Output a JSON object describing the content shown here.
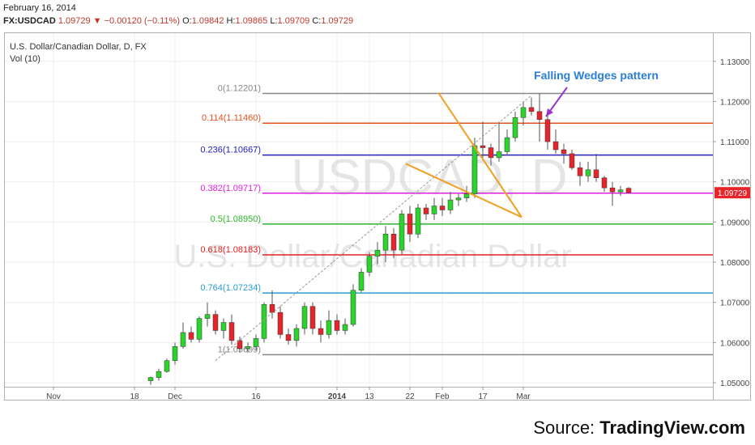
{
  "header": {
    "date": "February 16, 2014",
    "symbol": "FX:USDCAD",
    "last": "1.09729",
    "change": "−0.00120 (−0.11%)",
    "open_label": "O:",
    "open": "1.09842",
    "high_label": "H:",
    "high": "1.09865",
    "low_label": "L:",
    "low": "1.09709",
    "close_label": "C:",
    "close": "1.09729"
  },
  "chart_data": {
    "type": "candlestick",
    "title": "U.S. Dollar/Canadian Dollar, D, FX",
    "subtitle": "Vol (10)",
    "watermark_symbol": "USDCAD, D",
    "watermark_name": "U.S. Dollar/Canadian Dollar",
    "annotation": "Falling Wedges pattern",
    "last_price_label": "1.09729",
    "ylim": [
      1.049,
      1.137
    ],
    "y_ticks": [
      "1.13000",
      "1.12000",
      "1.11000",
      "1.10000",
      "1.09000",
      "1.08000",
      "1.07000",
      "1.06000",
      "1.05000"
    ],
    "x_ticks": [
      {
        "label": "Nov",
        "index": -12
      },
      {
        "label": "18",
        "index": -2
      },
      {
        "label": "Dec",
        "index": 3
      },
      {
        "label": "16",
        "index": 13
      },
      {
        "label": "2014",
        "index": 23
      },
      {
        "label": "13",
        "index": 27
      },
      {
        "label": "22",
        "index": 32
      },
      {
        "label": "Feb",
        "index": 36
      },
      {
        "label": "17",
        "index": 41
      },
      {
        "label": "Mar",
        "index": 46
      }
    ],
    "fib_levels": [
      {
        "label": "0(1.12201)",
        "value": 1.12201,
        "color": "#888888"
      },
      {
        "label": "0.114(1.11460)",
        "value": 1.1146,
        "color": "#e8501e"
      },
      {
        "label": "0.236(1.10667)",
        "value": 1.10667,
        "color": "#2020c0"
      },
      {
        "label": "0.382(1.09717)",
        "value": 1.09717,
        "color": "#e020e0"
      },
      {
        "label": "0.5(1.08950)",
        "value": 1.0895,
        "color": "#2cb52c"
      },
      {
        "label": "0.618(1.08183)",
        "value": 1.08183,
        "color": "#e02020"
      },
      {
        "label": "0.764(1.07234)",
        "value": 1.07234,
        "color": "#2a9fd0"
      },
      {
        "label": "1(1.05699)",
        "value": 1.05699,
        "color": "#888888"
      }
    ],
    "trendline": {
      "from": {
        "index": 8,
        "value": 1.0555
      },
      "to": {
        "index": 47,
        "value": 1.1215
      }
    },
    "wedge_upper": {
      "from": {
        "index": 35.5,
        "value": 1.1222
      },
      "to": {
        "index": 45.8,
        "value": 1.0912
      }
    },
    "wedge_lower": {
      "from": {
        "index": 31.5,
        "value": 1.1045
      },
      "to": {
        "index": 45.8,
        "value": 1.0912
      }
    },
    "candles": [
      {
        "o": 1.0505,
        "h": 1.0515,
        "l": 1.0495,
        "c": 1.0513
      },
      {
        "o": 1.0513,
        "h": 1.0535,
        "l": 1.0505,
        "c": 1.0528
      },
      {
        "o": 1.0528,
        "h": 1.056,
        "l": 1.0525,
        "c": 1.0555
      },
      {
        "o": 1.0555,
        "h": 1.06,
        "l": 1.0545,
        "c": 1.059
      },
      {
        "o": 1.059,
        "h": 1.065,
        "l": 1.0585,
        "c": 1.0625
      },
      {
        "o": 1.0625,
        "h": 1.064,
        "l": 1.06,
        "c": 1.0608
      },
      {
        "o": 1.0608,
        "h": 1.0665,
        "l": 1.06,
        "c": 1.066
      },
      {
        "o": 1.066,
        "h": 1.07,
        "l": 1.064,
        "c": 1.067
      },
      {
        "o": 1.067,
        "h": 1.068,
        "l": 1.062,
        "c": 1.063
      },
      {
        "o": 1.063,
        "h": 1.066,
        "l": 1.061,
        "c": 1.065
      },
      {
        "o": 1.065,
        "h": 1.067,
        "l": 1.0595,
        "c": 1.0605
      },
      {
        "o": 1.0605,
        "h": 1.0615,
        "l": 1.0575,
        "c": 1.0585
      },
      {
        "o": 1.0585,
        "h": 1.06,
        "l": 1.0575,
        "c": 1.059
      },
      {
        "o": 1.059,
        "h": 1.062,
        "l": 1.058,
        "c": 1.061
      },
      {
        "o": 1.061,
        "h": 1.07,
        "l": 1.06,
        "c": 1.0695
      },
      {
        "o": 1.0695,
        "h": 1.073,
        "l": 1.066,
        "c": 1.0675
      },
      {
        "o": 1.0675,
        "h": 1.069,
        "l": 1.061,
        "c": 1.062
      },
      {
        "o": 1.062,
        "h": 1.0635,
        "l": 1.0595,
        "c": 1.0605
      },
      {
        "o": 1.0605,
        "h": 1.0645,
        "l": 1.059,
        "c": 1.0635
      },
      {
        "o": 1.0635,
        "h": 1.07,
        "l": 1.062,
        "c": 1.069
      },
      {
        "o": 1.069,
        "h": 1.07,
        "l": 1.062,
        "c": 1.0635
      },
      {
        "o": 1.0635,
        "h": 1.0655,
        "l": 1.06,
        "c": 1.062
      },
      {
        "o": 1.062,
        "h": 1.068,
        "l": 1.061,
        "c": 1.0655
      },
      {
        "o": 1.0655,
        "h": 1.067,
        "l": 1.062,
        "c": 1.063
      },
      {
        "o": 1.063,
        "h": 1.066,
        "l": 1.062,
        "c": 1.0645
      },
      {
        "o": 1.0645,
        "h": 1.0745,
        "l": 1.064,
        "c": 1.073
      },
      {
        "o": 1.073,
        "h": 1.0785,
        "l": 1.0725,
        "c": 1.0775
      },
      {
        "o": 1.0775,
        "h": 1.0825,
        "l": 1.0765,
        "c": 1.0815
      },
      {
        "o": 1.0815,
        "h": 1.085,
        "l": 1.0795,
        "c": 1.083
      },
      {
        "o": 1.083,
        "h": 1.089,
        "l": 1.08,
        "c": 1.087
      },
      {
        "o": 1.087,
        "h": 1.0885,
        "l": 1.081,
        "c": 1.083
      },
      {
        "o": 1.083,
        "h": 1.093,
        "l": 1.082,
        "c": 1.092
      },
      {
        "o": 1.092,
        "h": 1.094,
        "l": 1.085,
        "c": 1.087
      },
      {
        "o": 1.087,
        "h": 1.0945,
        "l": 1.086,
        "c": 1.0935
      },
      {
        "o": 1.0935,
        "h": 1.0945,
        "l": 1.0905,
        "c": 1.092
      },
      {
        "o": 1.092,
        "h": 1.096,
        "l": 1.0905,
        "c": 1.094
      },
      {
        "o": 1.094,
        "h": 1.096,
        "l": 1.0915,
        "c": 1.093
      },
      {
        "o": 1.093,
        "h": 1.0975,
        "l": 1.092,
        "c": 1.0955
      },
      {
        "o": 1.0955,
        "h": 1.097,
        "l": 1.094,
        "c": 1.096
      },
      {
        "o": 1.096,
        "h": 1.099,
        "l": 1.095,
        "c": 1.097
      },
      {
        "o": 1.097,
        "h": 1.111,
        "l": 1.096,
        "c": 1.109
      },
      {
        "o": 1.109,
        "h": 1.115,
        "l": 1.106,
        "c": 1.1085
      },
      {
        "o": 1.1085,
        "h": 1.1095,
        "l": 1.104,
        "c": 1.106
      },
      {
        "o": 1.106,
        "h": 1.115,
        "l": 1.105,
        "c": 1.1075
      },
      {
        "o": 1.1075,
        "h": 1.113,
        "l": 1.1065,
        "c": 1.111
      },
      {
        "o": 1.111,
        "h": 1.1175,
        "l": 1.11,
        "c": 1.116
      },
      {
        "o": 1.116,
        "h": 1.12,
        "l": 1.114,
        "c": 1.1185
      },
      {
        "o": 1.1185,
        "h": 1.121,
        "l": 1.1165,
        "c": 1.1175
      },
      {
        "o": 1.1175,
        "h": 1.122,
        "l": 1.11,
        "c": 1.1155
      },
      {
        "o": 1.1155,
        "h": 1.1175,
        "l": 1.108,
        "c": 1.11
      },
      {
        "o": 1.11,
        "h": 1.113,
        "l": 1.107,
        "c": 1.108
      },
      {
        "o": 1.108,
        "h": 1.1095,
        "l": 1.1045,
        "c": 1.107
      },
      {
        "o": 1.107,
        "h": 1.108,
        "l": 1.103,
        "c": 1.1035
      },
      {
        "o": 1.1035,
        "h": 1.105,
        "l": 1.099,
        "c": 1.1015
      },
      {
        "o": 1.1015,
        "h": 1.105,
        "l": 1.1,
        "c": 1.103
      },
      {
        "o": 1.103,
        "h": 1.107,
        "l": 1.1,
        "c": 1.101
      },
      {
        "o": 1.101,
        "h": 1.1015,
        "l": 1.0975,
        "c": 1.0985
      },
      {
        "o": 1.0985,
        "h": 1.1,
        "l": 1.094,
        "c": 1.0975
      },
      {
        "o": 1.0975,
        "h": 1.099,
        "l": 1.0965,
        "c": 1.098
      },
      {
        "o": 1.0984,
        "h": 1.0987,
        "l": 1.0971,
        "c": 1.0973
      }
    ]
  },
  "source": {
    "prefix": "Source: ",
    "name": "TradingView.com"
  }
}
